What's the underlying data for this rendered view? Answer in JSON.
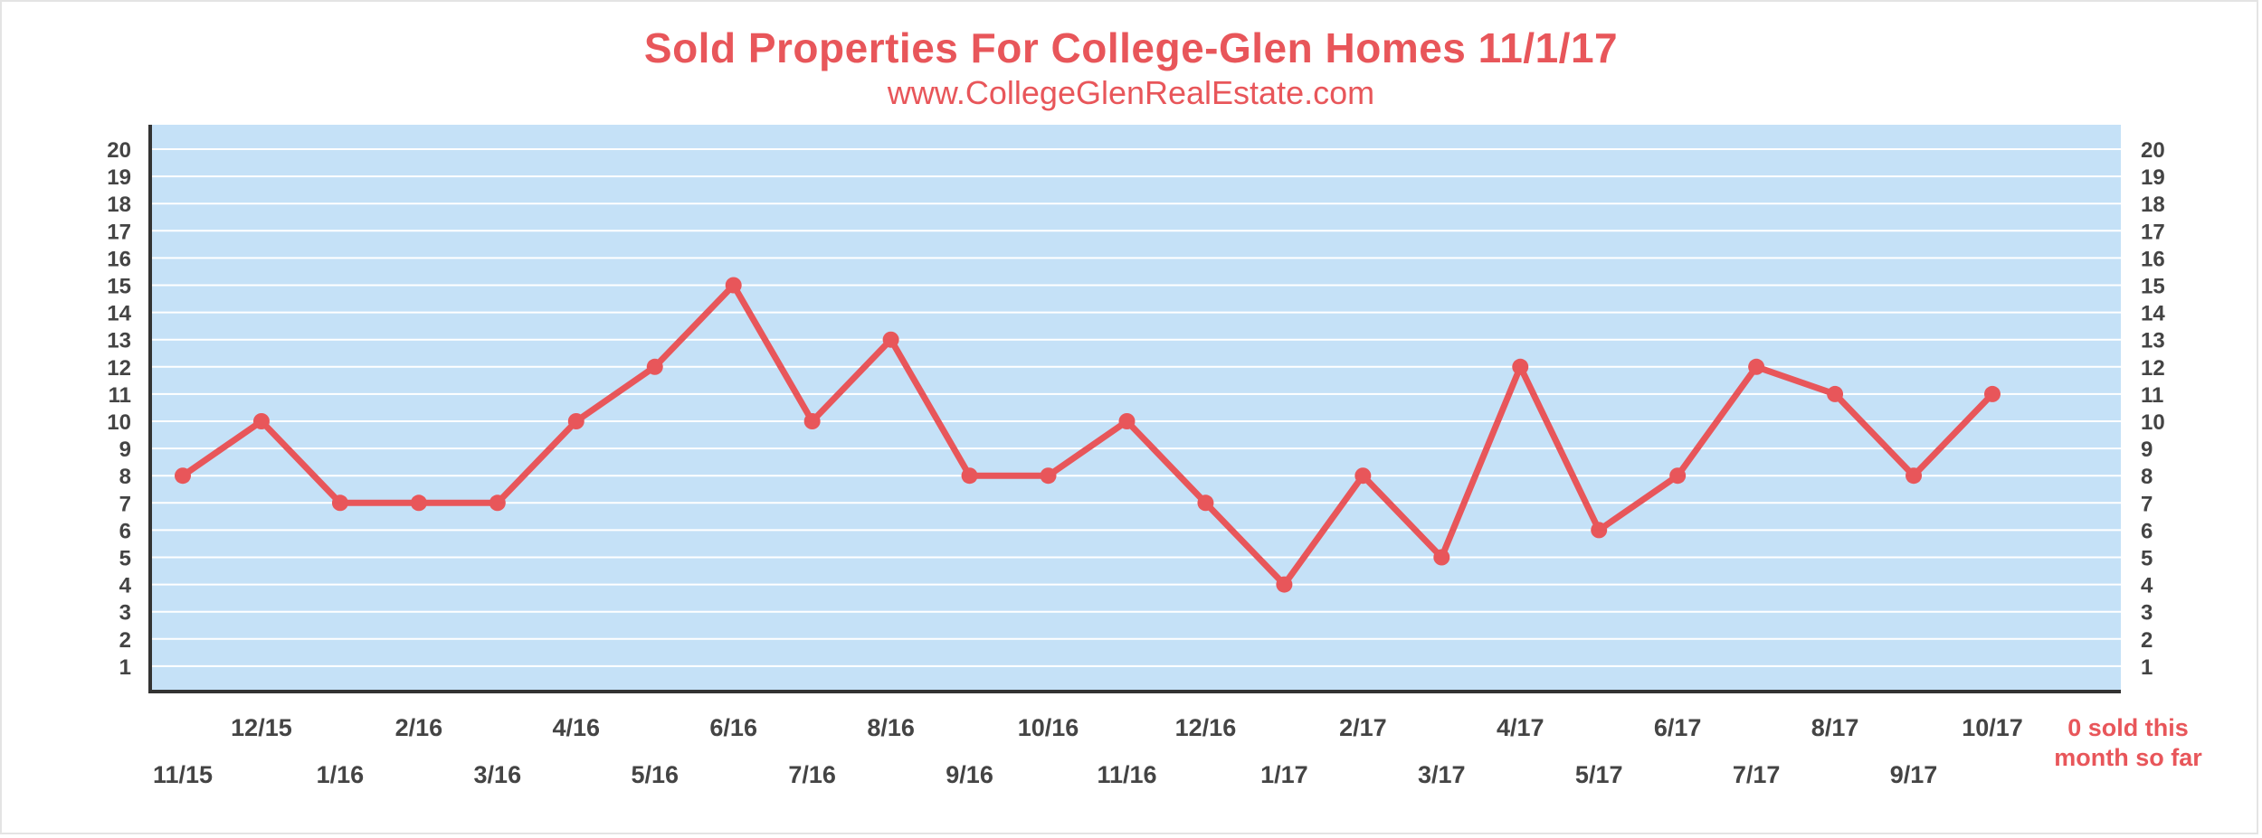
{
  "chart_data": {
    "type": "line",
    "title": "Sold Properties For College-Glen Homes 11/1/17",
    "subtitle": "www.CollegeGlenRealEstate.com",
    "xlabel": "",
    "ylabel": "",
    "ylim": [
      0,
      21
    ],
    "yticks": [
      1,
      2,
      3,
      4,
      5,
      6,
      7,
      8,
      9,
      10,
      11,
      12,
      13,
      14,
      15,
      16,
      17,
      18,
      19,
      20
    ],
    "grid": true,
    "categories": [
      "11/15",
      "12/15",
      "1/16",
      "2/16",
      "3/16",
      "4/16",
      "5/16",
      "6/16",
      "7/16",
      "8/16",
      "9/16",
      "10/16",
      "11/16",
      "12/16",
      "1/17",
      "2/17",
      "3/17",
      "4/17",
      "5/17",
      "6/17",
      "7/17",
      "8/17",
      "9/17",
      "10/17"
    ],
    "series": [
      {
        "name": "Sold Properties",
        "color": "#e8565a",
        "values": [
          8,
          10,
          7,
          7,
          7,
          10,
          12,
          15,
          10,
          13,
          8,
          8,
          10,
          7,
          4,
          8,
          5,
          12,
          6,
          8,
          12,
          11,
          8,
          11
        ]
      }
    ],
    "annotation_line1": "0 sold this",
    "annotation_line2": "month so far"
  },
  "colors": {
    "plot_background": "#c5e1f7",
    "grid": "#ffffff",
    "line": "#e8565a",
    "axis": "#333333",
    "tick_text": "#444444"
  }
}
